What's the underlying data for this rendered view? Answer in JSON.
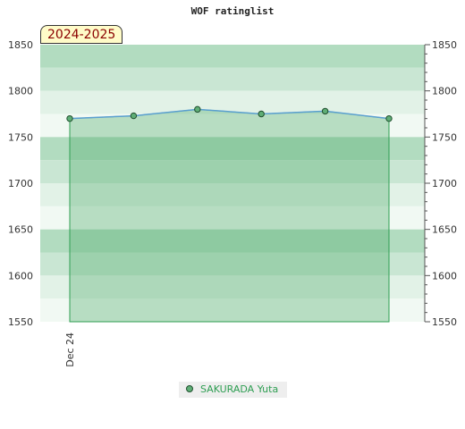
{
  "chart_data": {
    "type": "area",
    "title": "WOF ratinglist",
    "season": "2024-2025",
    "ylim": [
      1550,
      1850
    ],
    "y_ticks": [
      1550,
      1600,
      1650,
      1700,
      1750,
      1800,
      1850
    ],
    "x_tick_labels": [
      "Dec 24"
    ],
    "series": [
      {
        "name": "SAKURADA Yuta",
        "values": [
          1770,
          1773,
          1780,
          1775,
          1778,
          1770
        ]
      }
    ],
    "grid": false,
    "legend_position": "bottom",
    "colors": {
      "band_dark": "#b2dcc0",
      "band_mid": "#c9e6d3",
      "band_light": "#e2f2e7",
      "band_lighter": "#f1f9f3",
      "fill": "#4aaa66",
      "line": "#5a9fd0",
      "marker": "#5fae76"
    }
  }
}
